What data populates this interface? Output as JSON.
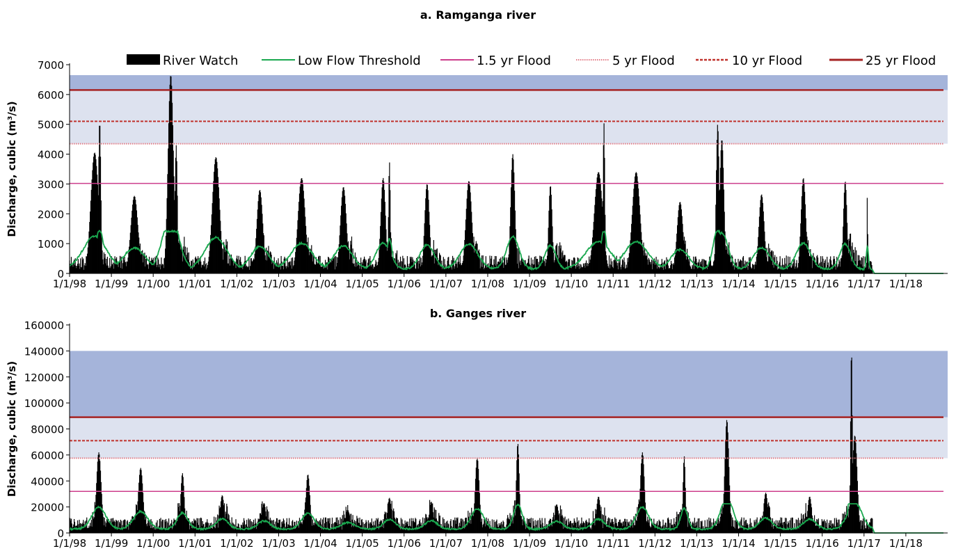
{
  "chart_data": [
    {
      "type": "area",
      "title": "a. Ramganga river",
      "ylabel": "Discharge, cubic (m³/s)",
      "xlabel": "",
      "ylim": [
        0,
        7000
      ],
      "yticks": [
        0,
        1000,
        2000,
        3000,
        4000,
        5000,
        6000,
        7000
      ],
      "xlim": [
        1998.0,
        2019.0
      ],
      "xtick_labels": [
        "1/1/98",
        "1/1/99",
        "1/1/00",
        "1/1/01",
        "1/1/02",
        "1/1/03",
        "1/1/04",
        "1/1/05",
        "1/1/06",
        "1/1/07",
        "1/1/08",
        "1/1/09",
        "1/1/10",
        "1/1/11",
        "1/1/12",
        "1/1/13",
        "1/1/14",
        "1/1/15",
        "1/1/16",
        "1/1/17",
        "1/1/18"
      ],
      "xtick_values": [
        1998,
        1999,
        2000,
        2001,
        2002,
        2003,
        2004,
        2005,
        2006,
        2007,
        2008,
        2009,
        2010,
        2011,
        2012,
        2013,
        2014,
        2015,
        2016,
        2017,
        2018
      ],
      "data_end": 2017.2,
      "lowflow_end": 2018.9,
      "bands": [
        {
          "from": 4350,
          "to": 6150,
          "color": "#dde2ef"
        },
        {
          "from": 6150,
          "to": 6650,
          "color": "#a5b4da"
        }
      ],
      "thresholds": [
        {
          "name": "1.5 yr Flood",
          "value": 3020,
          "color": "#cc3d8c",
          "style": "solid",
          "width": 1.5
        },
        {
          "name": "5 yr Flood",
          "value": 4350,
          "color": "#e27a84",
          "style": "dotted",
          "width": 2
        },
        {
          "name": "10 yr Flood",
          "value": 5100,
          "color": "#c0312b",
          "style": "dashed",
          "width": 2
        },
        {
          "name": "25 yr Flood",
          "value": 6150,
          "color": "#a62323",
          "style": "solid",
          "width": 2.5
        }
      ],
      "baseline": 300,
      "lowflow_base": 150,
      "peaks": [
        {
          "t": 1998.6,
          "v": 4050,
          "w": 0.13
        },
        {
          "t": 1998.72,
          "v": 5100,
          "w": 0.04
        },
        {
          "t": 1999.55,
          "v": 2600,
          "w": 0.12
        },
        {
          "t": 2000.42,
          "v": 6650,
          "w": 0.09
        },
        {
          "t": 2000.55,
          "v": 4300,
          "w": 0.04
        },
        {
          "t": 2001.5,
          "v": 3900,
          "w": 0.12
        },
        {
          "t": 2002.55,
          "v": 2800,
          "w": 0.1
        },
        {
          "t": 2003.55,
          "v": 3200,
          "w": 0.12
        },
        {
          "t": 2004.55,
          "v": 2900,
          "w": 0.1
        },
        {
          "t": 2005.5,
          "v": 3200,
          "w": 0.08
        },
        {
          "t": 2005.65,
          "v": 3750,
          "w": 0.03
        },
        {
          "t": 2006.55,
          "v": 3000,
          "w": 0.08
        },
        {
          "t": 2007.55,
          "v": 3100,
          "w": 0.1
        },
        {
          "t": 2008.6,
          "v": 4000,
          "w": 0.07
        },
        {
          "t": 2009.5,
          "v": 2950,
          "w": 0.06
        },
        {
          "t": 2010.65,
          "v": 3400,
          "w": 0.14
        },
        {
          "t": 2010.78,
          "v": 5050,
          "w": 0.03
        },
        {
          "t": 2011.55,
          "v": 3400,
          "w": 0.13
        },
        {
          "t": 2012.6,
          "v": 2400,
          "w": 0.1
        },
        {
          "t": 2013.5,
          "v": 5000,
          "w": 0.05
        },
        {
          "t": 2013.6,
          "v": 4500,
          "w": 0.07
        },
        {
          "t": 2014.55,
          "v": 2650,
          "w": 0.09
        },
        {
          "t": 2015.55,
          "v": 3200,
          "w": 0.08
        },
        {
          "t": 2016.55,
          "v": 3100,
          "w": 0.06
        },
        {
          "t": 2017.08,
          "v": 2750,
          "w": 0.012
        }
      ]
    },
    {
      "type": "area",
      "title": "b. Ganges river",
      "ylabel": "Discharge, cubic (m³/s)",
      "xlabel": "",
      "ylim": [
        0,
        160000
      ],
      "yticks": [
        0,
        20000,
        40000,
        60000,
        80000,
        100000,
        120000,
        140000,
        160000
      ],
      "xlim": [
        1998.0,
        2019.0
      ],
      "xtick_labels": [
        "1/1/98",
        "1/1/99",
        "1/1/00",
        "1/1/01",
        "1/1/02",
        "1/1/03",
        "1/1/04",
        "1/1/05",
        "1/1/06",
        "1/1/07",
        "1/1/08",
        "1/1/09",
        "1/1/10",
        "1/1/11",
        "1/1/12",
        "1/1/13",
        "1/1/14",
        "1/1/15",
        "1/1/16",
        "1/1/17",
        "1/1/18"
      ],
      "xtick_values": [
        1998,
        1999,
        2000,
        2001,
        2002,
        2003,
        2004,
        2005,
        2006,
        2007,
        2008,
        2009,
        2010,
        2011,
        2012,
        2013,
        2014,
        2015,
        2016,
        2017,
        2018
      ],
      "data_end": 2017.2,
      "lowflow_end": 2018.9,
      "bands": [
        {
          "from": 57500,
          "to": 89000,
          "color": "#dde2ef"
        },
        {
          "from": 89000,
          "to": 140000,
          "color": "#a5b4da"
        }
      ],
      "thresholds": [
        {
          "name": "1.5 yr Flood",
          "value": 32000,
          "color": "#cc3d8c",
          "style": "solid",
          "width": 1.5
        },
        {
          "name": "5 yr Flood",
          "value": 57500,
          "color": "#e27a84",
          "style": "dotted",
          "width": 2
        },
        {
          "name": "10 yr Flood",
          "value": 71000,
          "color": "#c0312b",
          "style": "dashed",
          "width": 2
        },
        {
          "name": "25 yr Flood",
          "value": 89000,
          "color": "#a62323",
          "style": "solid",
          "width": 2.5
        }
      ],
      "baseline": 6000,
      "lowflow_base": 3000,
      "peaks": [
        {
          "t": 1998.7,
          "v": 62000,
          "w": 0.08
        },
        {
          "t": 1999.7,
          "v": 50000,
          "w": 0.08
        },
        {
          "t": 2000.7,
          "v": 46000,
          "w": 0.06
        },
        {
          "t": 2001.65,
          "v": 29000,
          "w": 0.07
        },
        {
          "t": 2002.65,
          "v": 23000,
          "w": 0.07
        },
        {
          "t": 2003.7,
          "v": 45000,
          "w": 0.07
        },
        {
          "t": 2004.65,
          "v": 18000,
          "w": 0.08
        },
        {
          "t": 2005.65,
          "v": 27000,
          "w": 0.07
        },
        {
          "t": 2006.65,
          "v": 24000,
          "w": 0.07
        },
        {
          "t": 2007.75,
          "v": 58000,
          "w": 0.07
        },
        {
          "t": 2008.72,
          "v": 69000,
          "w": 0.05
        },
        {
          "t": 2009.65,
          "v": 22000,
          "w": 0.07
        },
        {
          "t": 2010.65,
          "v": 28000,
          "w": 0.07
        },
        {
          "t": 2011.7,
          "v": 62000,
          "w": 0.07
        },
        {
          "t": 2012.7,
          "v": 59000,
          "w": 0.04
        },
        {
          "t": 2013.72,
          "v": 87000,
          "w": 0.07
        },
        {
          "t": 2014.65,
          "v": 31000,
          "w": 0.07
        },
        {
          "t": 2015.7,
          "v": 28000,
          "w": 0.07
        },
        {
          "t": 2016.7,
          "v": 141000,
          "w": 0.03
        },
        {
          "t": 2016.78,
          "v": 75000,
          "w": 0.08
        }
      ]
    }
  ],
  "legend": [
    {
      "name": "River Watch",
      "kind": "bar",
      "color": "#000000"
    },
    {
      "name": "Low Flow Threshold",
      "kind": "line",
      "color": "#1aa84f"
    },
    {
      "name": "1.5 yr Flood",
      "kind": "line",
      "color": "#cc3d8c"
    },
    {
      "name": "5 yr Flood",
      "kind": "dotted",
      "color": "#e27a84"
    },
    {
      "name": "10 yr Flood",
      "kind": "dashed",
      "color": "#c0312b"
    },
    {
      "name": "25 yr Flood",
      "kind": "thick",
      "color": "#a62323"
    }
  ],
  "colors": {
    "river_watch": "#000000",
    "low_flow": "#1aa84f",
    "axis": "#000000"
  }
}
